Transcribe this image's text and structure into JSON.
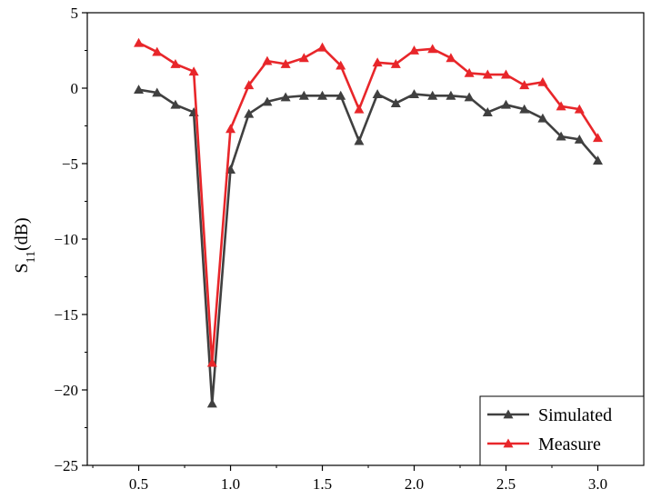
{
  "chart_data": {
    "type": "line",
    "ylabel": {
      "main": "S",
      "sub": "11",
      "rest": "(dB)"
    },
    "xlabel": "",
    "xlim": [
      0.22,
      3.25
    ],
    "ylim": [
      -25,
      5
    ],
    "xticks": [
      "0.5",
      "1.0",
      "1.5",
      "2.0",
      "2.5",
      "3.0"
    ],
    "yticks": [
      "5",
      "0",
      "−5",
      "−10",
      "−15",
      "−20",
      "−25"
    ],
    "legend_position": "bottom-right",
    "x": [
      0.5,
      0.6,
      0.7,
      0.8,
      0.9,
      1.0,
      1.1,
      1.2,
      1.3,
      1.4,
      1.5,
      1.6,
      1.7,
      1.8,
      1.9,
      2.0,
      2.1,
      2.2,
      2.3,
      2.4,
      2.5,
      2.6,
      2.7,
      2.8,
      2.9,
      3.0
    ],
    "series": [
      {
        "name": "Simulated",
        "color": "#404040",
        "marker": "triangle",
        "values": [
          -0.1,
          -0.3,
          -1.1,
          -1.6,
          -20.9,
          -5.4,
          -1.7,
          -0.9,
          -0.6,
          -0.5,
          -0.5,
          -0.5,
          -3.5,
          -0.4,
          -1.0,
          -0.4,
          -0.5,
          -0.5,
          -0.6,
          -1.6,
          -1.1,
          -1.4,
          -2.0,
          -3.2,
          -3.4,
          -4.8
        ]
      },
      {
        "name": "Measure",
        "color": "#e8262a",
        "marker": "triangle",
        "values": [
          3.0,
          2.4,
          1.6,
          1.1,
          -18.2,
          -2.7,
          0.2,
          1.8,
          1.6,
          2.0,
          2.7,
          1.5,
          -1.4,
          1.7,
          1.6,
          2.5,
          2.6,
          2.0,
          1.0,
          0.9,
          0.9,
          0.2,
          0.4,
          -1.2,
          -1.4,
          -3.3
        ]
      }
    ]
  }
}
